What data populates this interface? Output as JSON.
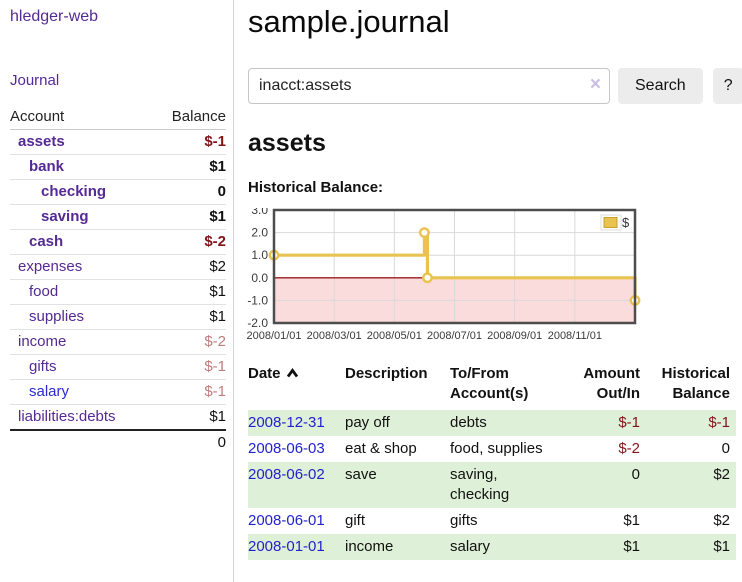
{
  "app_title": "hledger-web",
  "sidebar": {
    "journal_link": "Journal",
    "accounts_table": {
      "headers": {
        "account": "Account",
        "balance": "Balance"
      },
      "rows": [
        {
          "name": "assets",
          "balance": "$-1"
        },
        {
          "name": "bank",
          "balance": "$1"
        },
        {
          "name": "checking",
          "balance": "0"
        },
        {
          "name": "saving",
          "balance": "$1"
        },
        {
          "name": "cash",
          "balance": "$-2"
        },
        {
          "name": "expenses",
          "balance": "$2"
        },
        {
          "name": "food",
          "balance": "$1"
        },
        {
          "name": "supplies",
          "balance": "$1"
        },
        {
          "name": "income",
          "balance": "$-2"
        },
        {
          "name": "gifts",
          "balance": "$-1"
        },
        {
          "name": "salary",
          "balance": "$-1"
        },
        {
          "name": "liabilities:debts",
          "balance": "$1"
        }
      ],
      "total": "0"
    }
  },
  "main": {
    "title": "sample.journal",
    "search": {
      "value": "inacct:assets",
      "clear_icon": "×",
      "search_button": "Search",
      "help_button": "?"
    },
    "account_heading": "assets",
    "chart_title": "Historical Balance:"
  },
  "chart_data": {
    "type": "line",
    "title": "Historical Balance:",
    "ylim": [
      -2,
      3
    ],
    "xlim_months": [
      0,
      12
    ],
    "y_ticks": [
      3,
      2,
      1,
      0,
      -1,
      -2
    ],
    "y_grid_values": [
      2,
      1,
      -1
    ],
    "x_tick_months": [
      0,
      2,
      4,
      6,
      8,
      10
    ],
    "x_grid_months": [
      2,
      4,
      6,
      8,
      10
    ],
    "x_tick_labels": [
      "2008/01/01",
      "2008/03/01",
      "2008/05/01",
      "2008/07/01",
      "2008/09/01",
      "2008/11/01"
    ],
    "negative_region_color": "#fbdcdc",
    "zero_line_color": "#991b1b",
    "grid_color": "#d9d9d9",
    "legend": {
      "label": "$",
      "position": "top-right"
    },
    "events": [
      {
        "date": "2008-01-01",
        "balance": 1
      },
      {
        "date": "2008-06-01",
        "balance": 2
      },
      {
        "date": "2008-06-02",
        "balance": 2
      },
      {
        "date": "2008-06-03",
        "balance": 0
      },
      {
        "date": "2008-12-31",
        "balance": -1
      }
    ],
    "series": [
      {
        "name": "$",
        "color": "#e9c34f",
        "points": [
          [
            0,
            1
          ],
          [
            5,
            1
          ],
          [
            5,
            2
          ],
          [
            5.1,
            2
          ],
          [
            5.1,
            0
          ],
          [
            12,
            0
          ],
          [
            12,
            -1
          ]
        ],
        "markers": [
          [
            0,
            1
          ],
          [
            5,
            2
          ],
          [
            5.1,
            0
          ],
          [
            12,
            -1
          ]
        ]
      }
    ]
  },
  "register": {
    "headers": {
      "date": "Date",
      "description": "Description",
      "tofrom": "To/From Account(s)",
      "amount": "Amount Out/In",
      "historical": "Historical Balance"
    },
    "rows": [
      {
        "date": "2008-12-31",
        "description": "pay off",
        "tofrom": "debts",
        "amount": "$-1",
        "historical": "$-1"
      },
      {
        "date": "2008-06-03",
        "description": "eat & shop",
        "tofrom": "food, supplies",
        "amount": "$-2",
        "historical": "0"
      },
      {
        "date": "2008-06-02",
        "description": "save",
        "tofrom": "saving, checking",
        "amount": "0",
        "historical": "$2"
      },
      {
        "date": "2008-06-01",
        "description": "gift",
        "tofrom": "gifts",
        "amount": "$1",
        "historical": "$2"
      },
      {
        "date": "2008-01-01",
        "description": "income",
        "tofrom": "salary",
        "amount": "$1",
        "historical": "$1"
      }
    ]
  }
}
